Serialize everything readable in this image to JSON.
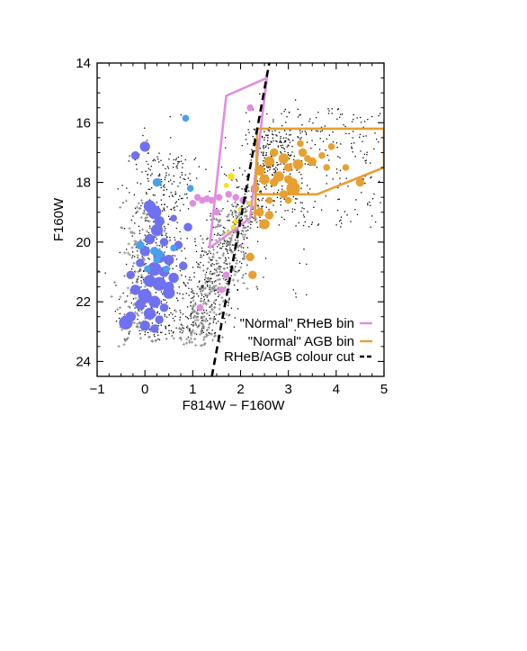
{
  "chart_data": {
    "type": "scatter",
    "title": "",
    "xlabel": "F814W − F160W",
    "ylabel": "F160W",
    "xlim": [
      -1,
      5
    ],
    "ylim": [
      24.5,
      14
    ],
    "y_inverted": true,
    "xticks": [
      -1,
      0,
      1,
      2,
      3,
      4,
      5
    ],
    "yticks": [
      14,
      16,
      18,
      20,
      22,
      24
    ],
    "grid": false,
    "legend_position": "bottom-right",
    "legend": [
      {
        "label": "\"Normal\" RHeB bin",
        "color": "#e08ee0",
        "style": "solid"
      },
      {
        "label": "\"Normal\" AGB bin",
        "color": "#e8a030",
        "style": "solid"
      },
      {
        "label": "RHeB/AGB colour cut",
        "color": "#000000",
        "style": "dashed"
      }
    ],
    "rheb_bin_polygon": [
      [
        1.35,
        20.2
      ],
      [
        1.7,
        15.1
      ],
      [
        2.55,
        14.5
      ],
      [
        2.2,
        19.2
      ],
      [
        1.35,
        20.2
      ]
    ],
    "agb_bin_polygon": [
      [
        2.3,
        19.2
      ],
      [
        2.35,
        16.2
      ],
      [
        5.0,
        16.2
      ],
      [
        5.0,
        17.5
      ],
      [
        3.6,
        18.4
      ],
      [
        2.3,
        18.4
      ]
    ],
    "colour_cut_line": [
      [
        1.4,
        24.5
      ],
      [
        2.6,
        14.0
      ]
    ],
    "series": [
      {
        "kind": "rheb-large",
        "color": "#6f72f0",
        "points": [
          [
            0.0,
            16.8,
            6
          ],
          [
            -0.2,
            17.1,
            5
          ],
          [
            0.1,
            18.8,
            7
          ],
          [
            0.2,
            19.0,
            8
          ],
          [
            0.3,
            19.3,
            6
          ],
          [
            0.25,
            19.6,
            7
          ],
          [
            0.1,
            19.9,
            6
          ],
          [
            0.4,
            20.0,
            5
          ],
          [
            0.0,
            20.3,
            6
          ],
          [
            0.3,
            20.5,
            7
          ],
          [
            0.5,
            20.6,
            6
          ],
          [
            -0.1,
            20.7,
            5
          ],
          [
            0.2,
            20.9,
            8
          ],
          [
            0.4,
            21.0,
            6
          ],
          [
            -0.3,
            21.1,
            5
          ],
          [
            0.6,
            21.2,
            6
          ],
          [
            0.1,
            21.3,
            7
          ],
          [
            0.3,
            21.4,
            8
          ],
          [
            -0.2,
            21.6,
            6
          ],
          [
            0.5,
            21.7,
            7
          ],
          [
            0.0,
            21.8,
            8
          ],
          [
            0.2,
            22.0,
            7
          ],
          [
            -0.1,
            22.1,
            6
          ],
          [
            0.4,
            22.2,
            5
          ],
          [
            0.1,
            22.4,
            7
          ],
          [
            -0.3,
            22.5,
            6
          ],
          [
            0.3,
            22.6,
            5
          ],
          [
            -0.4,
            22.7,
            8
          ],
          [
            0.0,
            22.8,
            6
          ],
          [
            0.2,
            22.9,
            5
          ],
          [
            0.7,
            20.1,
            5
          ],
          [
            0.9,
            19.5,
            5
          ],
          [
            0.6,
            19.2,
            4
          ],
          [
            0.8,
            20.8,
            5
          ],
          [
            0.5,
            21.5,
            6
          ]
        ]
      },
      {
        "kind": "rheb-lightblue",
        "color": "#4aa0ec",
        "points": [
          [
            0.85,
            15.85,
            4
          ],
          [
            0.25,
            18.0,
            5
          ],
          [
            0.95,
            18.2,
            4
          ],
          [
            -0.1,
            20.1,
            5
          ],
          [
            0.2,
            20.3,
            5
          ],
          [
            0.3,
            20.4,
            5
          ],
          [
            0.25,
            20.6,
            4
          ],
          [
            0.45,
            20.9,
            4
          ],
          [
            0.6,
            20.2,
            4
          ],
          [
            0.05,
            20.9,
            4
          ]
        ]
      },
      {
        "kind": "rheb-pink",
        "color": "#e08ee0",
        "points": [
          [
            1.1,
            18.5,
            4
          ],
          [
            1.2,
            18.6,
            4
          ],
          [
            1.3,
            18.55,
            4
          ],
          [
            1.4,
            18.6,
            4
          ],
          [
            1.55,
            18.5,
            4
          ],
          [
            1.0,
            18.7,
            4
          ],
          [
            1.75,
            18.4,
            4
          ],
          [
            1.9,
            18.5,
            4
          ],
          [
            2.05,
            18.6,
            4
          ],
          [
            1.5,
            19.0,
            4
          ],
          [
            1.15,
            22.2,
            4
          ],
          [
            1.6,
            21.6,
            4
          ],
          [
            1.7,
            21.1,
            4
          ],
          [
            2.2,
            15.5,
            4
          ]
        ]
      },
      {
        "kind": "agb-orange",
        "color": "#e8a030",
        "points": [
          [
            2.4,
            17.6,
            6
          ],
          [
            2.6,
            17.3,
            6
          ],
          [
            2.7,
            17.0,
            5
          ],
          [
            2.9,
            17.2,
            6
          ],
          [
            3.0,
            17.5,
            5
          ],
          [
            3.2,
            17.4,
            6
          ],
          [
            3.3,
            17.0,
            5
          ],
          [
            3.5,
            17.3,
            5
          ],
          [
            3.7,
            17.1,
            4
          ],
          [
            2.5,
            17.9,
            6
          ],
          [
            2.8,
            17.8,
            6
          ],
          [
            3.0,
            17.9,
            5
          ],
          [
            3.1,
            18.2,
            8
          ],
          [
            2.9,
            18.4,
            5
          ],
          [
            2.6,
            18.6,
            4
          ],
          [
            2.4,
            19.0,
            5
          ],
          [
            2.5,
            19.4,
            6
          ],
          [
            3.0,
            18.6,
            4
          ],
          [
            3.4,
            17.2,
            4
          ],
          [
            4.5,
            18.0,
            5
          ],
          [
            3.8,
            17.5,
            4
          ],
          [
            4.2,
            17.5,
            4
          ],
          [
            2.3,
            18.2,
            5
          ],
          [
            2.7,
            18.0,
            5
          ],
          [
            3.9,
            16.8,
            4
          ],
          [
            2.2,
            20.5,
            5
          ],
          [
            2.25,
            21.1,
            5
          ],
          [
            3.25,
            16.7,
            4
          ],
          [
            3.1,
            18.0,
            5
          ],
          [
            2.6,
            19.1,
            5
          ]
        ]
      },
      {
        "kind": "yellow-markers",
        "color": "#f5e21e",
        "points": [
          [
            1.8,
            17.8,
            4
          ],
          [
            1.7,
            18.1,
            3
          ],
          [
            2.0,
            18.9,
            3
          ],
          [
            1.9,
            19.3,
            3
          ],
          [
            1.85,
            19.5,
            3
          ],
          [
            2.2,
            18.7,
            3
          ],
          [
            1.75,
            19.7,
            3
          ]
        ]
      }
    ],
    "background_cloud_black": {
      "color": "#000000",
      "count": 1500,
      "center_band": {
        "x_start": -0.3,
        "x_end": 2.8,
        "y_start": 23.5,
        "y_end": 15.5
      }
    },
    "background_cloud_grey": {
      "color": "#8a8a8a",
      "count": 450,
      "center_band": {
        "x_start": 1.0,
        "x_end": 2.3,
        "y_start": 23.5,
        "y_end": 18.5
      }
    }
  }
}
